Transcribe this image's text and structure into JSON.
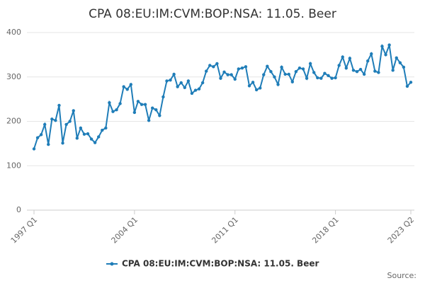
{
  "chart_data": {
    "type": "line",
    "title": "CPA 08:EU:IM:CVM:BOP:NSA: 11.05. Beer",
    "source": "Source:",
    "categories": [
      "1997 Q1",
      null,
      null,
      null,
      null,
      null,
      null,
      null,
      null,
      null,
      null,
      null,
      null,
      null,
      null,
      null,
      null,
      null,
      null,
      null,
      null,
      null,
      null,
      null,
      null,
      null,
      null,
      null,
      "2004 Q1",
      null,
      null,
      null,
      null,
      null,
      null,
      null,
      null,
      null,
      null,
      null,
      null,
      null,
      null,
      null,
      null,
      null,
      null,
      null,
      null,
      null,
      null,
      null,
      null,
      null,
      null,
      null,
      "2011 Q1",
      null,
      null,
      null,
      null,
      null,
      null,
      null,
      null,
      null,
      null,
      null,
      null,
      null,
      null,
      null,
      null,
      null,
      null,
      null,
      null,
      null,
      null,
      null,
      null,
      null,
      null,
      null,
      "2018 Q1",
      null,
      null,
      null,
      null,
      null,
      null,
      null,
      null,
      null,
      null,
      null,
      null,
      null,
      null,
      null,
      null,
      null,
      null,
      null,
      null,
      "2023 Q2"
    ],
    "series": [
      {
        "name": "CPA 08:EU:IM:CVM:BOP:NSA: 11.05. Beer",
        "color": "#1f7db8",
        "values": [
          138,
          163,
          170,
          193,
          148,
          205,
          202,
          236,
          151,
          193,
          200,
          224,
          162,
          185,
          171,
          172,
          160,
          152,
          165,
          180,
          185,
          242,
          222,
          226,
          240,
          278,
          272,
          283,
          220,
          245,
          238,
          238,
          202,
          230,
          226,
          213,
          255,
          291,
          293,
          306,
          278,
          287,
          276,
          291,
          263,
          270,
          273,
          287,
          313,
          326,
          323,
          330,
          297,
          311,
          305,
          305,
          295,
          318,
          320,
          323,
          280,
          288,
          271,
          275,
          305,
          324,
          312,
          300,
          283,
          322,
          306,
          306,
          289,
          312,
          320,
          318,
          297,
          330,
          310,
          298,
          297,
          308,
          303,
          297,
          298,
          326,
          345,
          320,
          342,
          315,
          312,
          317,
          306,
          336,
          352,
          313,
          310,
          369,
          350,
          372,
          315,
          343,
          332,
          322,
          279,
          288
        ]
      }
    ],
    "ylim": [
      0,
      400
    ],
    "yticks": [
      0,
      100,
      200,
      300,
      400
    ],
    "grid": true
  }
}
